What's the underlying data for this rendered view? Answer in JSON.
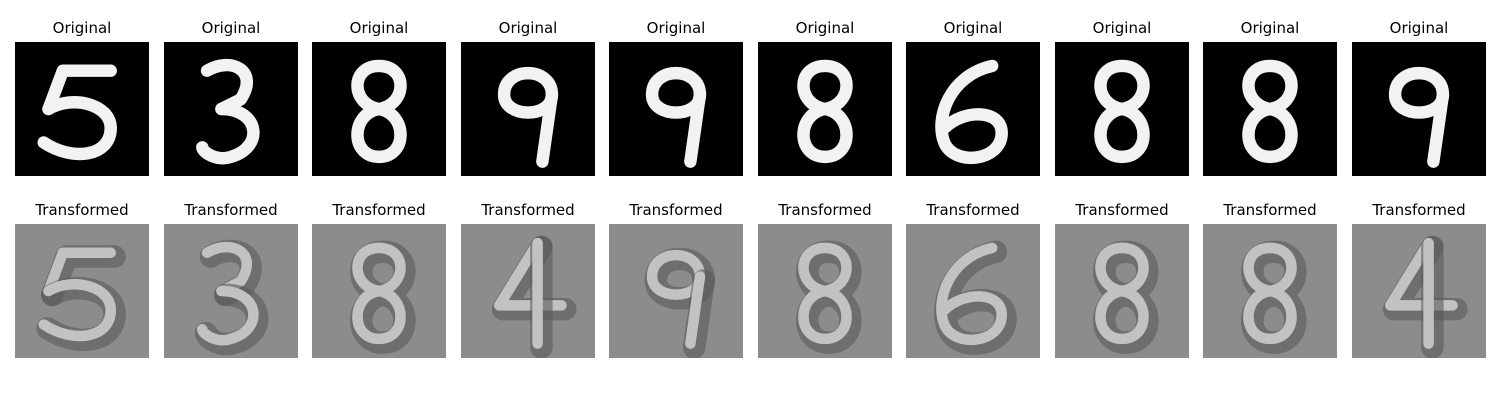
{
  "rows": [
    {
      "id": "original",
      "titles": [
        "Original",
        "Original",
        "Original",
        "Original",
        "Original",
        "Original",
        "Original",
        "Original",
        "Original",
        "Original"
      ],
      "digits": [
        "5",
        "3",
        "8",
        "9",
        "9",
        "8",
        "6",
        "8",
        "8",
        "9"
      ]
    },
    {
      "id": "transformed",
      "titles": [
        "Transformed",
        "Transformed",
        "Transformed",
        "Transformed",
        "Transformed",
        "Transformed",
        "Transformed",
        "Transformed",
        "Transformed",
        "Transformed"
      ],
      "digits": [
        "5",
        "3",
        "8",
        "4",
        "9",
        "8",
        "6",
        "8",
        "8",
        "4"
      ]
    }
  ],
  "colors": {
    "original_background": "#000000",
    "original_stroke": "#f2f2f2",
    "transformed_background": "#8c8c8c",
    "transformed_stroke": "#c2c2c2",
    "transformed_shadow": "#5a5a5a"
  }
}
